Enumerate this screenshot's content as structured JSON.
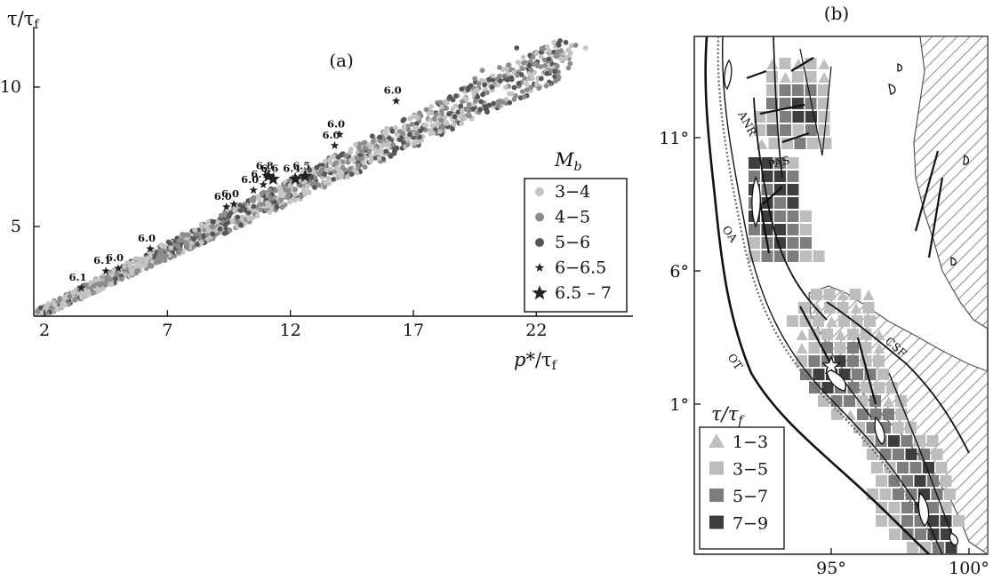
{
  "chart_data": [
    {
      "type": "scatter",
      "panel_label": "(a)",
      "xlabel": "p*/τf",
      "ylabel": "τ/τf",
      "xlim": [
        1.5,
        24
      ],
      "ylim": [
        1.8,
        11.8
      ],
      "xticks": [
        "2",
        "7",
        "12",
        "17",
        "22"
      ],
      "yticks": [
        "5",
        "10"
      ],
      "legend": {
        "title": "Mb",
        "position": "right",
        "entries": [
          {
            "label": "3−4",
            "marker": "circle",
            "color": "#c4c4c4"
          },
          {
            "label": "4−5",
            "marker": "circle",
            "color": "#8c8c8c"
          },
          {
            "label": "5−6",
            "marker": "circle",
            "color": "#555555"
          },
          {
            "label": "6−6.5",
            "marker": "small-star",
            "color": "#222222"
          },
          {
            "label": "6.5 – 7",
            "marker": "large-star",
            "color": "#222222"
          }
        ]
      },
      "labeled_events": [
        {
          "x": 3.5,
          "y": 2.8,
          "label": "6.1"
        },
        {
          "x": 4.5,
          "y": 3.4,
          "label": "6.1"
        },
        {
          "x": 5.0,
          "y": 3.5,
          "label": "6.0"
        },
        {
          "x": 6.3,
          "y": 4.2,
          "label": "6.0"
        },
        {
          "x": 9.4,
          "y": 5.7,
          "label": "6.0"
        },
        {
          "x": 9.7,
          "y": 5.8,
          "label": "6.0"
        },
        {
          "x": 10.5,
          "y": 6.3,
          "label": "6.0"
        },
        {
          "x": 10.9,
          "y": 6.5,
          "label": "6.1"
        },
        {
          "x": 11.1,
          "y": 6.8,
          "label": "6.8"
        },
        {
          "x": 11.3,
          "y": 6.7,
          "label": "6.6"
        },
        {
          "x": 12.2,
          "y": 6.7,
          "label": "6.4"
        },
        {
          "x": 12.6,
          "y": 6.8,
          "label": "6.5"
        },
        {
          "x": 13.8,
          "y": 7.9,
          "label": "6.0"
        },
        {
          "x": 14.0,
          "y": 8.3,
          "label": "6.0"
        },
        {
          "x": 16.3,
          "y": 9.5,
          "label": "6.0"
        }
      ]
    },
    {
      "type": "map",
      "panel_label": "(b)",
      "xticks": [
        "95°",
        "100°"
      ],
      "yticks": [
        "11°",
        "6°",
        "1°"
      ],
      "xlim": [
        92,
        100.5
      ],
      "ylim": [
        -2.8,
        13.5
      ],
      "features": [
        "ANR",
        "PAS",
        "OA",
        "OT",
        "CSF"
      ],
      "legend": {
        "title": "τ/τf",
        "position": "bottom-left",
        "entries": [
          {
            "label": "1−3",
            "marker": "triangle",
            "color": "#bfbfbf"
          },
          {
            "label": "3−5",
            "marker": "square",
            "color": "#bdbdbd"
          },
          {
            "label": "5−7",
            "marker": "square",
            "color": "#7d7d7d"
          },
          {
            "label": "7−9",
            "marker": "square",
            "color": "#3e3e3e"
          }
        ]
      }
    }
  ]
}
